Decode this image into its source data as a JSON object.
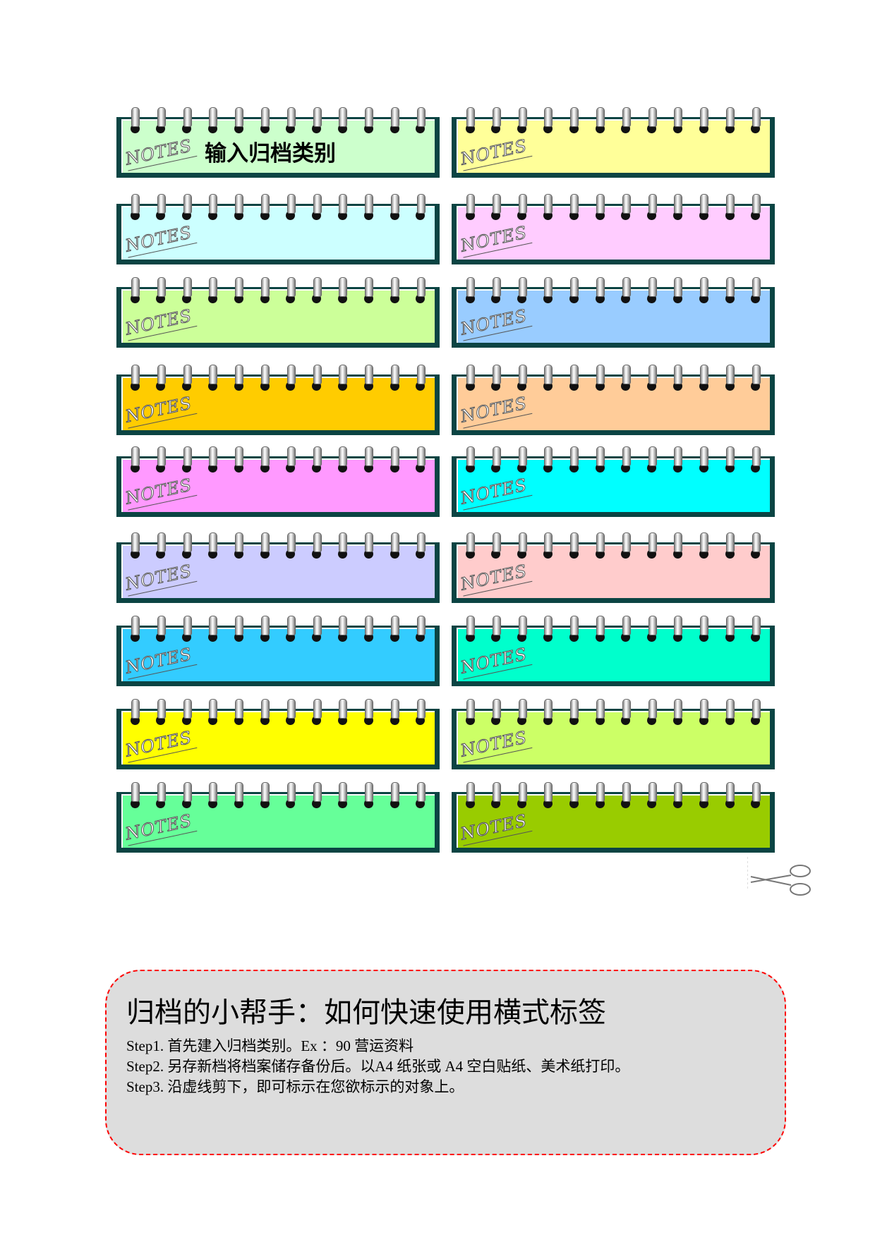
{
  "notebooks": {
    "notes_text": "NOTES",
    "ring_count": 12,
    "border_color": "#0b4443",
    "first_label": "输入归档类别",
    "left_colors": [
      "#ccffcc",
      "#ccffff",
      "#ccff99",
      "#ffcc00",
      "#ff99ff",
      "#ccccff",
      "#33ccff",
      "#ffff00",
      "#66ff99"
    ],
    "right_colors": [
      "#ffff99",
      "#ffccff",
      "#99ccff",
      "#ffcc99",
      "#00ffff",
      "#ffcccc",
      "#00ffcc",
      "#ccff66",
      "#99cc00"
    ]
  },
  "scissors_icon": "scissors-icon",
  "help": {
    "title": "归档的小帮手：如何快速使用横式标签",
    "steps": [
      "Step1. 首先建入归档类别。Ex ：90 营运资料",
      "Step2. 另存新档将档案储存备份后。以A4 纸张或 A4 空白贴纸、美术纸打印。",
      "Step3. 沿虚线剪下，即可标示在您欲标示的对象上。"
    ],
    "border_color": "#ff0000",
    "background": "#dddddd"
  }
}
